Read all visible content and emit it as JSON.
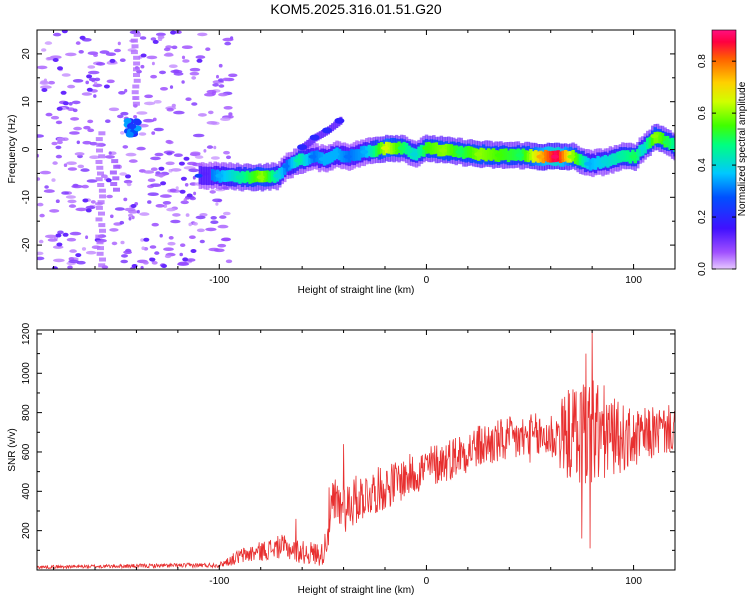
{
  "figure": {
    "title": "KOM5.2025.316.01.51.G20"
  },
  "chart_data": [
    {
      "type": "heatmap",
      "name": "spectrogram",
      "xlabel": "Height of straight line (km)",
      "ylabel": "Frequency (Hz)",
      "xlim": [
        -188,
        120
      ],
      "ylim": [
        -25,
        25
      ],
      "xticks": [
        -100,
        0,
        100
      ],
      "xtick_labels": [
        "-100",
        "0",
        "100"
      ],
      "yticks": [
        -20,
        -10,
        0,
        10,
        20
      ],
      "ytick_labels": [
        "-20",
        "-10",
        "0",
        "10",
        "20"
      ],
      "colorbar": {
        "label": "Normalized spectral amplitude",
        "range": [
          0,
          0.92
        ],
        "ticks": [
          0,
          0.2,
          0.4,
          0.6,
          0.8
        ],
        "tick_labels": [
          "0.0",
          "0.2",
          "0.4",
          "0.6",
          "0.8"
        ],
        "colors": [
          "#e6c8ff",
          "#a050ff",
          "#4010ff",
          "#0040ff",
          "#00c8ff",
          "#00ff80",
          "#40ff00",
          "#d0ff00",
          "#ffd000",
          "#ff6000",
          "#ff0040",
          "#ff1080"
        ]
      },
      "ridge": [
        {
          "x": -110,
          "f": -5.5,
          "a": 0.25
        },
        {
          "x": -100,
          "f": -5.5,
          "a": 0.35
        },
        {
          "x": -90,
          "f": -5.8,
          "a": 0.45
        },
        {
          "x": -80,
          "f": -5.8,
          "a": 0.6
        },
        {
          "x": -72,
          "f": -5.5,
          "a": 0.4
        },
        {
          "x": -68,
          "f": -3.5,
          "a": 0.3
        },
        {
          "x": -62,
          "f": -2.3,
          "a": 0.45
        },
        {
          "x": -55,
          "f": -1.5,
          "a": 0.3
        },
        {
          "x": -50,
          "f": -2.0,
          "a": 0.35
        },
        {
          "x": -44,
          "f": -1.0,
          "a": 0.35
        },
        {
          "x": -38,
          "f": -1.5,
          "a": 0.3
        },
        {
          "x": -30,
          "f": -0.5,
          "a": 0.35
        },
        {
          "x": -20,
          "f": 0.3,
          "a": 0.65
        },
        {
          "x": -12,
          "f": 0.3,
          "a": 0.5
        },
        {
          "x": -6,
          "f": -1.0,
          "a": 0.4
        },
        {
          "x": 0,
          "f": 0.3,
          "a": 0.55
        },
        {
          "x": 8,
          "f": -0.2,
          "a": 0.6
        },
        {
          "x": 16,
          "f": -0.5,
          "a": 0.5
        },
        {
          "x": 25,
          "f": -1.0,
          "a": 0.6
        },
        {
          "x": 35,
          "f": -1.2,
          "a": 0.55
        },
        {
          "x": 45,
          "f": -1.2,
          "a": 0.5
        },
        {
          "x": 55,
          "f": -1.5,
          "a": 0.75
        },
        {
          "x": 62,
          "f": -1.5,
          "a": 0.9
        },
        {
          "x": 70,
          "f": -1.5,
          "a": 0.6
        },
        {
          "x": 78,
          "f": -3.0,
          "a": 0.35
        },
        {
          "x": 86,
          "f": -2.5,
          "a": 0.4
        },
        {
          "x": 94,
          "f": -1.5,
          "a": 0.45
        },
        {
          "x": 100,
          "f": -1.5,
          "a": 0.5
        },
        {
          "x": 104,
          "f": 0.3,
          "a": 0.4
        },
        {
          "x": 110,
          "f": 2.8,
          "a": 0.6
        },
        {
          "x": 116,
          "f": 1.5,
          "a": 0.5
        },
        {
          "x": 120,
          "f": 0.5,
          "a": 0.45
        }
      ],
      "branch": [
        {
          "x": -60,
          "f": 0.5,
          "a": 0.2
        },
        {
          "x": -54,
          "f": 2.5,
          "a": 0.2
        },
        {
          "x": -48,
          "f": 4.0,
          "a": 0.2
        },
        {
          "x": -42,
          "f": 6.0,
          "a": 0.18
        }
      ],
      "cluster": {
        "x": -142,
        "f": 4.5,
        "a": 0.35
      }
    },
    {
      "type": "line",
      "name": "snr",
      "xlabel": "Height of straight line (km)",
      "ylabel": "SNR (v/v)",
      "xlim": [
        -188,
        120
      ],
      "ylim": [
        0,
        1220
      ],
      "xticks": [
        -100,
        0,
        100
      ],
      "xtick_labels": [
        "-100",
        "0",
        "100"
      ],
      "yticks": [
        200,
        400,
        600,
        800,
        1000,
        1200
      ],
      "ytick_labels": [
        "200",
        "400",
        "600",
        "800",
        "1000",
        "1200"
      ],
      "color": "#e83030",
      "trend": {
        "x": [
          -188,
          -100,
          -90,
          -70,
          -60,
          -50,
          -45,
          -40,
          -30,
          -20,
          -10,
          0,
          10,
          20,
          30,
          40,
          50,
          60,
          70,
          80,
          90,
          100,
          110,
          120
        ],
        "y": [
          15,
          25,
          70,
          120,
          90,
          80,
          330,
          320,
          380,
          420,
          470,
          520,
          560,
          610,
          640,
          660,
          670,
          680,
          690,
          700,
          680,
          660,
          700,
          720
        ]
      },
      "noise_amplitude": {
        "x": [
          -188,
          -100,
          -90,
          -70,
          -50,
          -45,
          -30,
          -10,
          10,
          40,
          60,
          70,
          80,
          90,
          100,
          120
        ],
        "y": [
          8,
          12,
          40,
          60,
          60,
          150,
          120,
          110,
          110,
          120,
          130,
          250,
          330,
          200,
          150,
          120
        ]
      },
      "peaks": [
        {
          "x": -63,
          "y": 260
        },
        {
          "x": -47,
          "y": 420
        },
        {
          "x": -40,
          "y": 640
        },
        {
          "x": 77,
          "y": 1100
        },
        {
          "x": 80,
          "y": 1220
        },
        {
          "x": 79,
          "y": 110
        },
        {
          "x": 75,
          "y": 160
        }
      ]
    }
  ]
}
